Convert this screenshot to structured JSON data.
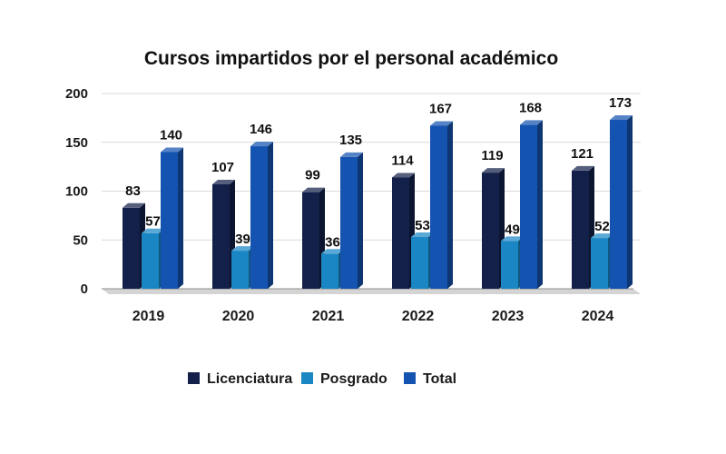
{
  "chart_data": {
    "type": "bar",
    "title": "Cursos impartidos por el personal académico",
    "categories": [
      "2019",
      "2020",
      "2021",
      "2022",
      "2023",
      "2024"
    ],
    "series": [
      {
        "name": "Licenciatura",
        "values": [
          83,
          107,
          99,
          114,
          119,
          121
        ],
        "color": "#13214a"
      },
      {
        "name": "Posgrado",
        "values": [
          57,
          39,
          36,
          53,
          49,
          52
        ],
        "color": "#1a86c4"
      },
      {
        "name": "Total",
        "values": [
          140,
          146,
          135,
          167,
          168,
          173
        ],
        "color": "#1453b0"
      }
    ],
    "ylim": [
      0,
      200
    ],
    "yticks": [
      0,
      50,
      100,
      150,
      200
    ],
    "grid": true,
    "legend": "bottom",
    "data_labels": true,
    "style": "3d-columns"
  }
}
